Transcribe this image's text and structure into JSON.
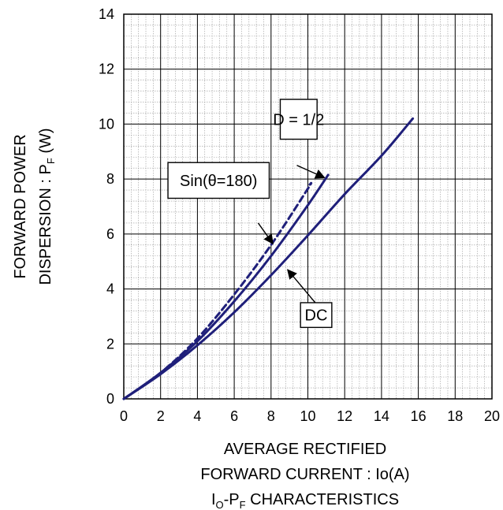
{
  "chart_data": {
    "type": "line",
    "xlabel_line1": "AVERAGE RECTIFIED",
    "xlabel_line2": "FORWARD CURRENT : Io(A)",
    "caption": {
      "main": "I",
      "sub1": "O",
      "mid": "-P",
      "sub2": "F",
      "tail": " CHARACTERISTICS"
    },
    "ylabel_line1": "FORWARD POWER",
    "ylabel_line2": {
      "main": "DISPERSION : P",
      "sub": "F",
      "tail": " (W)"
    },
    "xlim": [
      0,
      20
    ],
    "ylim": [
      0,
      14
    ],
    "x_ticks": [
      "0",
      "2",
      "4",
      "6",
      "8",
      "10",
      "12",
      "14",
      "16",
      "18",
      "20"
    ],
    "y_ticks": [
      "0",
      "2",
      "4",
      "6",
      "8",
      "10",
      "12",
      "14"
    ],
    "grid": {
      "major": true,
      "minor": true,
      "minor_step_x": 0.4,
      "minor_step_y": 0.4
    },
    "colors": {
      "series": "#1f1f7a",
      "grid_major": "#000000",
      "grid_minor": "#999999"
    },
    "series": [
      {
        "name": "DC",
        "style": "solid",
        "x": [
          0,
          2,
          4,
          6,
          8,
          10,
          12,
          14,
          15.7
        ],
        "y": [
          0,
          0.9,
          1.95,
          3.15,
          4.5,
          5.95,
          7.45,
          8.85,
          10.2
        ]
      },
      {
        "name": "D = 1/2",
        "style": "solid",
        "x": [
          0,
          2,
          4,
          6,
          8,
          10,
          11.1
        ],
        "y": [
          0,
          0.95,
          2.1,
          3.55,
          5.2,
          7.05,
          8.15
        ]
      },
      {
        "name": "Sin(θ=180)",
        "style": "dashed",
        "x": [
          0,
          2,
          4,
          6,
          8,
          10,
          10.1
        ],
        "y": [
          0,
          0.95,
          2.2,
          3.8,
          5.6,
          7.65,
          7.8
        ]
      }
    ],
    "annotations": [
      {
        "label": "D = 1/2",
        "box": [
          8.5,
          10.5,
          9.45,
          10.9
        ],
        "arrow_from": [
          9.4,
          8.5
        ],
        "arrow_to": [
          10.9,
          8.05
        ]
      },
      {
        "label": "Sin(θ=180)",
        "box": [
          2.4,
          7.9,
          7.3,
          8.6
        ],
        "arrow_from": [
          7.3,
          6.4
        ],
        "arrow_to": [
          8.1,
          5.65
        ]
      },
      {
        "label": "DC",
        "box": [
          9.6,
          11.3,
          2.6,
          3.5
        ],
        "arrow_from": [
          10.4,
          3.5
        ],
        "arrow_to": [
          8.9,
          4.7
        ]
      }
    ]
  }
}
